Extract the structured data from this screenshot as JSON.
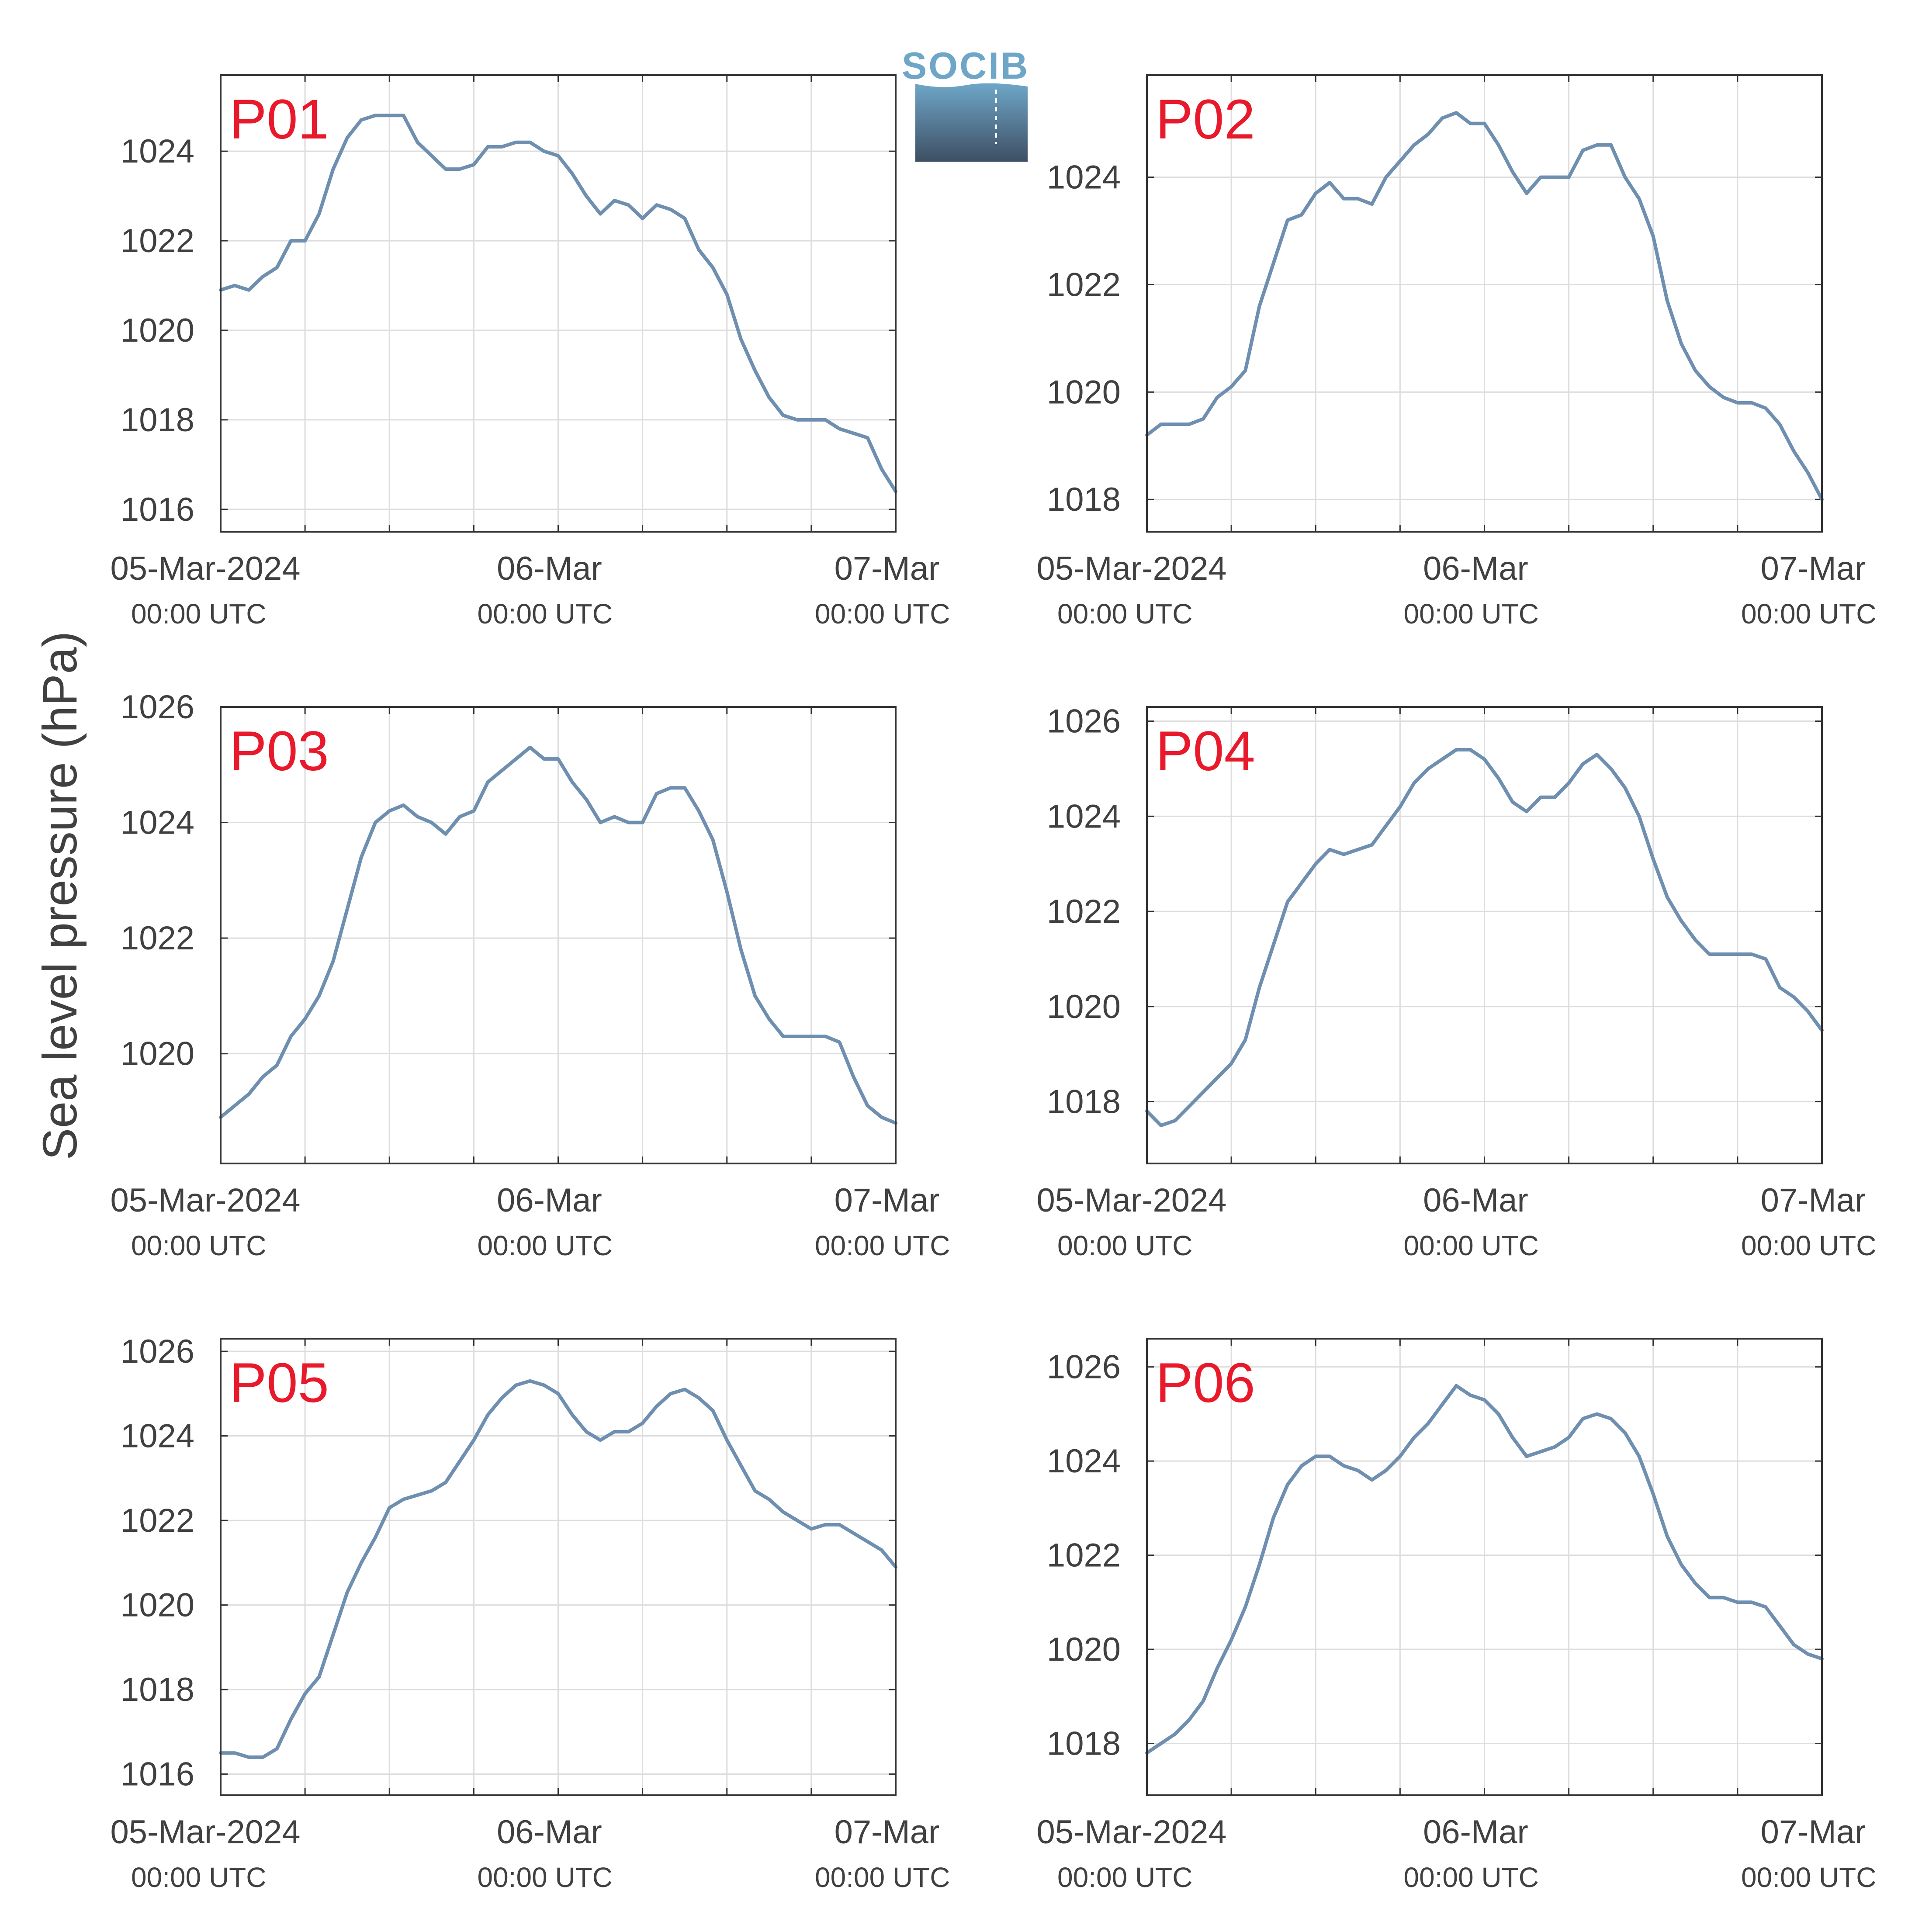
{
  "figure": {
    "ylabel": "Sea level pressure (hPa)",
    "logo_text": "SOCIB",
    "colors": {
      "line": "#6f8fb0",
      "panel_label": "#e8192b",
      "axis": "#333333",
      "grid": "#dddddd",
      "text": "#404040",
      "logo_top": "#6ea6c8",
      "logo_bottom": "#3e4f63"
    }
  },
  "chart_data": [
    {
      "type": "line",
      "label": "P01",
      "x_tick_labels": [
        "05-Mar-2024",
        "06-Mar",
        "07-Mar"
      ],
      "x_tick_sublabels": [
        "00:00 UTC",
        "00:00 UTC",
        "00:00 UTC"
      ],
      "xlim": [
        0,
        48
      ],
      "ylim": [
        1015.5,
        1025.7
      ],
      "y_ticks": [
        1016,
        1018,
        1020,
        1022,
        1024
      ],
      "x": [
        0,
        1,
        2,
        3,
        4,
        5,
        6,
        7,
        8,
        9,
        10,
        11,
        12,
        13,
        14,
        15,
        16,
        17,
        18,
        19,
        20,
        21,
        22,
        23,
        24,
        25,
        26,
        27,
        28,
        29,
        30,
        31,
        32,
        33,
        34,
        35,
        36,
        37,
        38,
        39,
        40,
        41,
        42,
        43,
        44,
        45,
        46,
        47,
        48
      ],
      "y": [
        1020.9,
        1021.0,
        1020.9,
        1021.2,
        1021.4,
        1022.0,
        1022.0,
        1022.6,
        1023.6,
        1024.3,
        1024.7,
        1024.8,
        1024.8,
        1024.8,
        1024.2,
        1023.9,
        1023.6,
        1023.6,
        1023.7,
        1024.1,
        1024.1,
        1024.2,
        1024.2,
        1024.0,
        1023.9,
        1023.5,
        1023.0,
        1022.6,
        1022.9,
        1022.8,
        1022.5,
        1022.8,
        1022.7,
        1022.5,
        1021.8,
        1021.4,
        1020.8,
        1019.8,
        1019.1,
        1018.5,
        1018.1,
        1018.0,
        1018.0,
        1018.0,
        1017.8,
        1017.7,
        1017.6,
        1016.9,
        1016.4
      ]
    },
    {
      "type": "line",
      "label": "P02",
      "x_tick_labels": [
        "05-Mar-2024",
        "06-Mar",
        "07-Mar"
      ],
      "x_tick_sublabels": [
        "00:00 UTC",
        "00:00 UTC",
        "00:00 UTC"
      ],
      "xlim": [
        0,
        48
      ],
      "ylim": [
        1017.4,
        1025.9
      ],
      "y_ticks": [
        1018,
        1020,
        1022,
        1024
      ],
      "x": [
        0,
        1,
        2,
        3,
        4,
        5,
        6,
        7,
        8,
        9,
        10,
        11,
        12,
        13,
        14,
        15,
        16,
        17,
        18,
        19,
        20,
        21,
        22,
        23,
        24,
        25,
        26,
        27,
        28,
        29,
        30,
        31,
        32,
        33,
        34,
        35,
        36,
        37,
        38,
        39,
        40,
        41,
        42,
        43,
        44,
        45,
        46,
        47,
        48
      ],
      "y": [
        1019.2,
        1019.4,
        1019.4,
        1019.4,
        1019.5,
        1019.9,
        1020.1,
        1020.4,
        1021.6,
        1022.4,
        1023.2,
        1023.3,
        1023.7,
        1023.9,
        1023.6,
        1023.6,
        1023.5,
        1024.0,
        1024.3,
        1024.6,
        1024.8,
        1025.1,
        1025.2,
        1025.0,
        1025.0,
        1024.6,
        1024.1,
        1023.7,
        1024.0,
        1024.0,
        1024.0,
        1024.5,
        1024.6,
        1024.6,
        1024.0,
        1023.6,
        1022.9,
        1021.7,
        1020.9,
        1020.4,
        1020.1,
        1019.9,
        1019.8,
        1019.8,
        1019.7,
        1019.4,
        1018.9,
        1018.5,
        1018.0
      ]
    },
    {
      "type": "line",
      "label": "P03",
      "x_tick_labels": [
        "05-Mar-2024",
        "06-Mar",
        "07-Mar"
      ],
      "x_tick_sublabels": [
        "00:00 UTC",
        "00:00 UTC",
        "00:00 UTC"
      ],
      "xlim": [
        0,
        48
      ],
      "ylim": [
        1018.1,
        1026.0
      ],
      "y_ticks": [
        1020,
        1022,
        1024,
        1026
      ],
      "x": [
        0,
        1,
        2,
        3,
        4,
        5,
        6,
        7,
        8,
        9,
        10,
        11,
        12,
        13,
        14,
        15,
        16,
        17,
        18,
        19,
        20,
        21,
        22,
        23,
        24,
        25,
        26,
        27,
        28,
        29,
        30,
        31,
        32,
        33,
        34,
        35,
        36,
        37,
        38,
        39,
        40,
        41,
        42,
        43,
        44,
        45,
        46,
        47,
        48
      ],
      "y": [
        1018.9,
        1019.1,
        1019.3,
        1019.6,
        1019.8,
        1020.3,
        1020.6,
        1021.0,
        1021.6,
        1022.5,
        1023.4,
        1024.0,
        1024.2,
        1024.3,
        1024.1,
        1024.0,
        1023.8,
        1024.1,
        1024.2,
        1024.7,
        1024.9,
        1025.1,
        1025.3,
        1025.1,
        1025.1,
        1024.7,
        1024.4,
        1024.0,
        1024.1,
        1024.0,
        1024.0,
        1024.5,
        1024.6,
        1024.6,
        1024.2,
        1023.7,
        1022.8,
        1021.8,
        1021.0,
        1020.6,
        1020.3,
        1020.3,
        1020.3,
        1020.3,
        1020.2,
        1019.6,
        1019.1,
        1018.9,
        1018.8
      ]
    },
    {
      "type": "line",
      "label": "P04",
      "x_tick_labels": [
        "05-Mar-2024",
        "06-Mar",
        "07-Mar"
      ],
      "x_tick_sublabels": [
        "00:00 UTC",
        "00:00 UTC",
        "00:00 UTC"
      ],
      "xlim": [
        0,
        48
      ],
      "ylim": [
        1016.7,
        1026.3
      ],
      "y_ticks": [
        1018,
        1020,
        1022,
        1024,
        1026
      ],
      "x": [
        0,
        1,
        2,
        3,
        4,
        5,
        6,
        7,
        8,
        9,
        10,
        11,
        12,
        13,
        14,
        15,
        16,
        17,
        18,
        19,
        20,
        21,
        22,
        23,
        24,
        25,
        26,
        27,
        28,
        29,
        30,
        31,
        32,
        33,
        34,
        35,
        36,
        37,
        38,
        39,
        40,
        41,
        42,
        43,
        44,
        45,
        46,
        47,
        48
      ],
      "y": [
        1017.8,
        1017.5,
        1017.6,
        1017.9,
        1018.2,
        1018.5,
        1018.8,
        1019.3,
        1020.4,
        1021.3,
        1022.2,
        1022.6,
        1023.0,
        1023.3,
        1023.2,
        1023.3,
        1023.4,
        1023.8,
        1024.2,
        1024.7,
        1025.0,
        1025.2,
        1025.4,
        1025.4,
        1025.2,
        1024.8,
        1024.3,
        1024.1,
        1024.4,
        1024.4,
        1024.7,
        1025.1,
        1025.3,
        1025.0,
        1024.6,
        1024.0,
        1023.1,
        1022.3,
        1021.8,
        1021.4,
        1021.1,
        1021.1,
        1021.1,
        1021.1,
        1021.0,
        1020.4,
        1020.2,
        1019.9,
        1019.5
      ]
    },
    {
      "type": "line",
      "label": "P05",
      "x_tick_labels": [
        "05-Mar-2024",
        "06-Mar",
        "07-Mar"
      ],
      "x_tick_sublabels": [
        "00:00 UTC",
        "00:00 UTC",
        "00:00 UTC"
      ],
      "xlim": [
        0,
        48
      ],
      "ylim": [
        1015.5,
        1026.3
      ],
      "y_ticks": [
        1016,
        1018,
        1020,
        1022,
        1024,
        1026
      ],
      "x": [
        0,
        1,
        2,
        3,
        4,
        5,
        6,
        7,
        8,
        9,
        10,
        11,
        12,
        13,
        14,
        15,
        16,
        17,
        18,
        19,
        20,
        21,
        22,
        23,
        24,
        25,
        26,
        27,
        28,
        29,
        30,
        31,
        32,
        33,
        34,
        35,
        36,
        37,
        38,
        39,
        40,
        41,
        42,
        43,
        44,
        45,
        46,
        47,
        48
      ],
      "y": [
        1016.5,
        1016.5,
        1016.4,
        1016.4,
        1016.6,
        1017.3,
        1017.9,
        1018.3,
        1019.3,
        1020.3,
        1021.0,
        1021.6,
        1022.3,
        1022.5,
        1022.6,
        1022.7,
        1022.9,
        1023.4,
        1023.9,
        1024.5,
        1024.9,
        1025.2,
        1025.3,
        1025.2,
        1025.0,
        1024.5,
        1024.1,
        1023.9,
        1024.1,
        1024.1,
        1024.3,
        1024.7,
        1025.0,
        1025.1,
        1024.9,
        1024.6,
        1023.9,
        1023.3,
        1022.7,
        1022.5,
        1022.2,
        1022.0,
        1021.8,
        1021.9,
        1021.9,
        1021.7,
        1021.5,
        1021.3,
        1020.9
      ]
    },
    {
      "type": "line",
      "label": "P06",
      "x_tick_labels": [
        "05-Mar-2024",
        "06-Mar",
        "07-Mar"
      ],
      "x_tick_sublabels": [
        "00:00 UTC",
        "00:00 UTC",
        "00:00 UTC"
      ],
      "xlim": [
        0,
        48
      ],
      "ylim": [
        1016.9,
        1026.6
      ],
      "y_ticks": [
        1018,
        1020,
        1022,
        1024,
        1026
      ],
      "x": [
        0,
        1,
        2,
        3,
        4,
        5,
        6,
        7,
        8,
        9,
        10,
        11,
        12,
        13,
        14,
        15,
        16,
        17,
        18,
        19,
        20,
        21,
        22,
        23,
        24,
        25,
        26,
        27,
        28,
        29,
        30,
        31,
        32,
        33,
        34,
        35,
        36,
        37,
        38,
        39,
        40,
        41,
        42,
        43,
        44,
        45,
        46,
        47,
        48
      ],
      "y": [
        1017.8,
        1018.0,
        1018.2,
        1018.5,
        1018.9,
        1019.6,
        1020.2,
        1020.9,
        1021.8,
        1022.8,
        1023.5,
        1023.9,
        1024.1,
        1024.1,
        1023.9,
        1023.8,
        1023.6,
        1023.8,
        1024.1,
        1024.5,
        1024.8,
        1025.2,
        1025.6,
        1025.4,
        1025.3,
        1025.0,
        1024.5,
        1024.1,
        1024.2,
        1024.3,
        1024.5,
        1024.9,
        1025.0,
        1024.9,
        1024.6,
        1024.1,
        1023.3,
        1022.4,
        1021.8,
        1021.4,
        1021.1,
        1021.1,
        1021.0,
        1021.0,
        1020.9,
        1020.5,
        1020.1,
        1019.9,
        1019.8
      ]
    }
  ]
}
